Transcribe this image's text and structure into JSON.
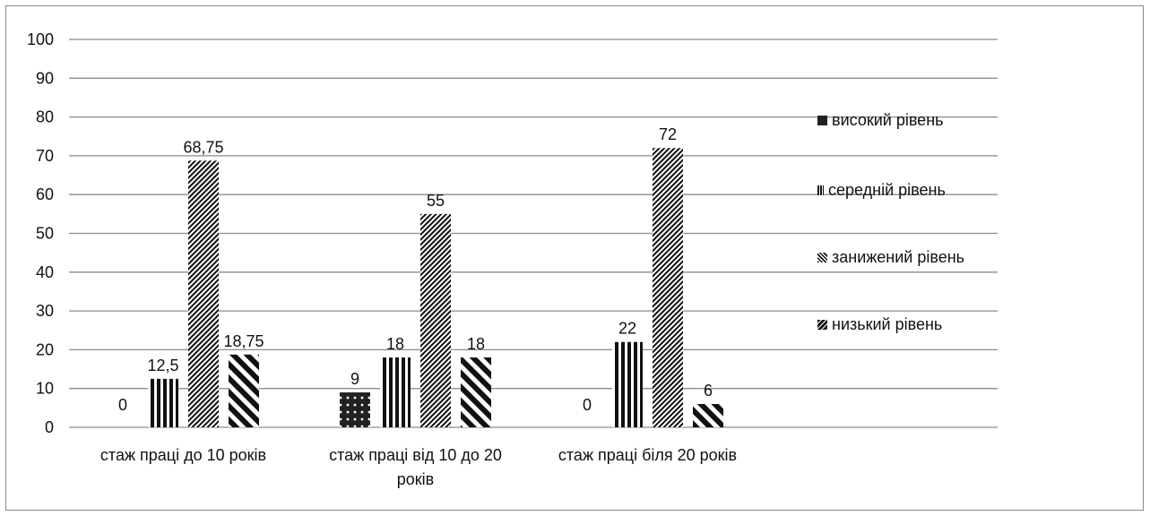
{
  "chart_data": {
    "type": "bar",
    "categories": [
      "стаж праці  до 10 років",
      "стаж праці від 10 до 20 років",
      "стаж праці біля 20 років"
    ],
    "category_label_lines": [
      [
        "стаж праці  до 10 років"
      ],
      [
        "стаж праці від 10 до 20",
        "років"
      ],
      [
        "стаж праці біля 20 років"
      ]
    ],
    "series": [
      {
        "name": "високий рівень",
        "values": [
          0,
          9,
          0
        ],
        "labels": [
          "0",
          "9",
          "0"
        ],
        "pattern": "solid-dark"
      },
      {
        "name": "середній рівень",
        "values": [
          12.5,
          18,
          22
        ],
        "labels": [
          "12,5",
          "18",
          "22"
        ],
        "pattern": "vertical-stripes"
      },
      {
        "name": "занижений рівень",
        "values": [
          68.75,
          55,
          72
        ],
        "labels": [
          "68,75",
          "55",
          "72"
        ],
        "pattern": "dense-diagonal"
      },
      {
        "name": "низький рівень",
        "values": [
          18.75,
          18,
          6
        ],
        "labels": [
          "18,75",
          "18",
          "6"
        ],
        "pattern": "wide-diagonal"
      }
    ],
    "yticks": [
      "0",
      "10",
      "20",
      "30",
      "40",
      "50",
      "60",
      "70",
      "80",
      "90",
      "100"
    ],
    "ylim": [
      0,
      100
    ],
    "grid": true,
    "legend_position": "right",
    "colors": {
      "ink": "#111111",
      "grid": "#8c8c8c"
    }
  }
}
